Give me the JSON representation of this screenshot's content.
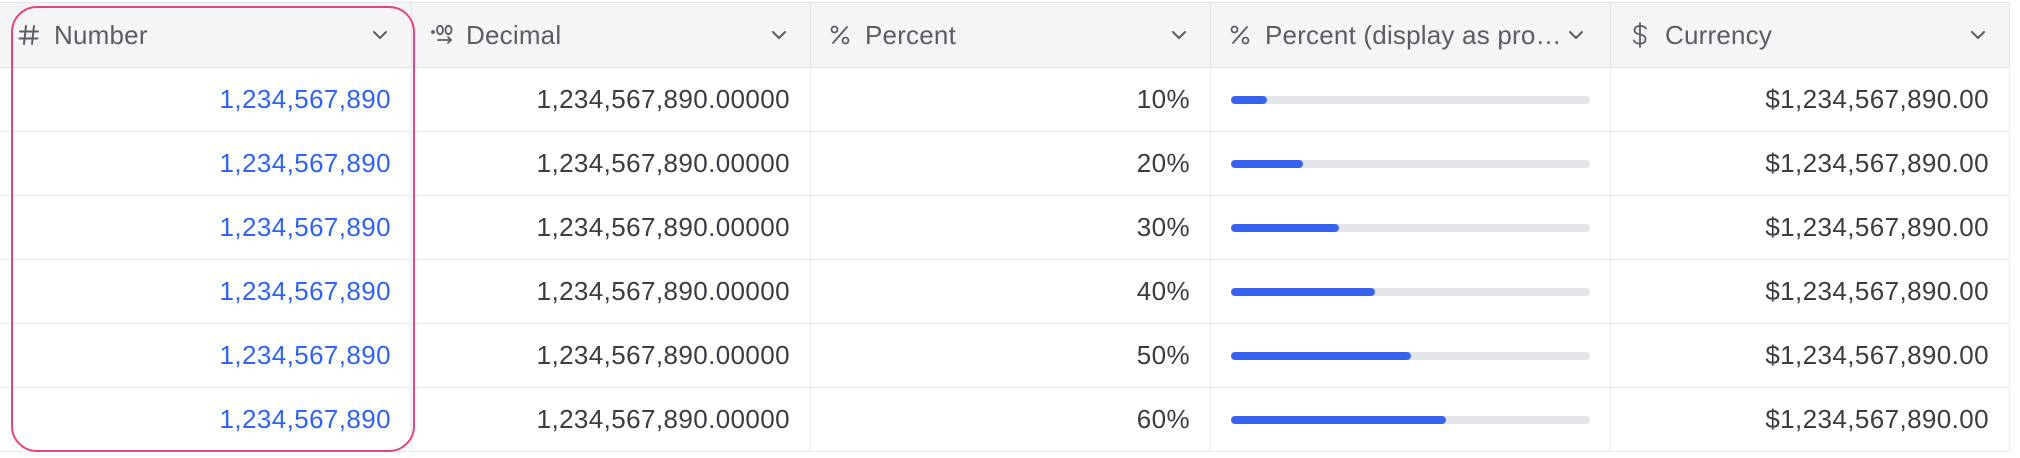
{
  "columns": [
    {
      "key": "number",
      "label": "Number",
      "icon": "hash-icon"
    },
    {
      "key": "decimal",
      "label": "Decimal",
      "icon": "decimal-icon"
    },
    {
      "key": "percent",
      "label": "Percent",
      "icon": "percent-icon"
    },
    {
      "key": "percent_progress",
      "label": "Percent (display as pro…",
      "icon": "percent-icon"
    },
    {
      "key": "currency",
      "label": "Currency",
      "icon": "dollar-icon"
    }
  ],
  "rows": [
    {
      "number": "1,234,567,890",
      "decimal": "1,234,567,890.00000",
      "percent": "10%",
      "progress": 0.1,
      "currency": "$1,234,567,890.00"
    },
    {
      "number": "1,234,567,890",
      "decimal": "1,234,567,890.00000",
      "percent": "20%",
      "progress": 0.2,
      "currency": "$1,234,567,890.00"
    },
    {
      "number": "1,234,567,890",
      "decimal": "1,234,567,890.00000",
      "percent": "30%",
      "progress": 0.3,
      "currency": "$1,234,567,890.00"
    },
    {
      "number": "1,234,567,890",
      "decimal": "1,234,567,890.00000",
      "percent": "40%",
      "progress": 0.4,
      "currency": "$1,234,567,890.00"
    },
    {
      "number": "1,234,567,890",
      "decimal": "1,234,567,890.00000",
      "percent": "50%",
      "progress": 0.5,
      "currency": "$1,234,567,890.00"
    },
    {
      "number": "1,234,567,890",
      "decimal": "1,234,567,890.00000",
      "percent": "60%",
      "progress": 0.6,
      "currency": "$1,234,567,890.00"
    }
  ],
  "colors": {
    "link_number": "#2f64f0",
    "progress_fill": "#3763ee",
    "highlight_border": "#e4457b"
  },
  "selected_column": "number"
}
